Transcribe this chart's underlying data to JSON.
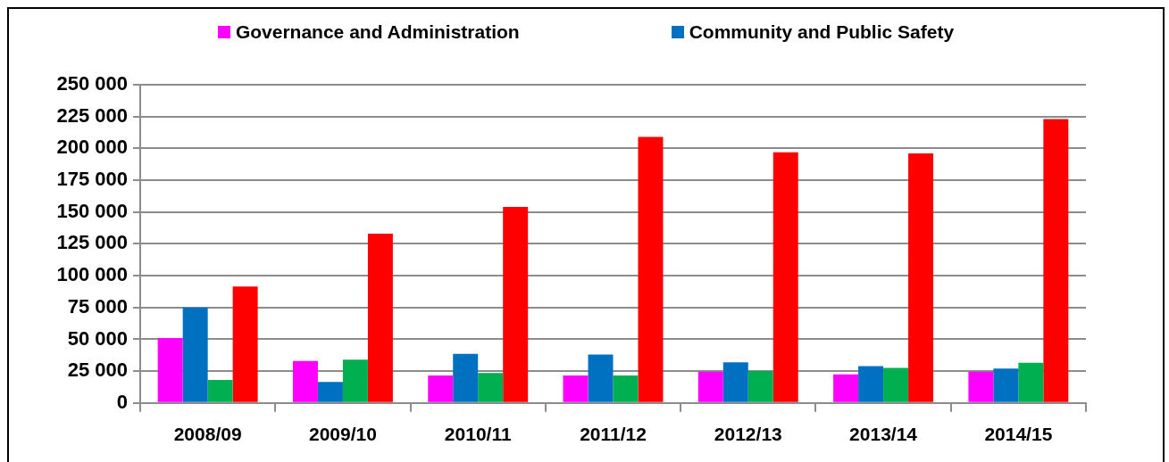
{
  "chart_data": {
    "type": "bar",
    "categories": [
      "2008/09",
      "2009/10",
      "2010/11",
      "2011/12",
      "2012/13",
      "2013/14",
      "2014/15"
    ],
    "series": [
      {
        "name": "Governance and Administration",
        "color": "#ff00ff",
        "values": [
          51000,
          33000,
          21500,
          21500,
          24500,
          22500,
          24500
        ]
      },
      {
        "name": "Community and Public Safety",
        "color": "#0070c0",
        "values": [
          75000,
          16500,
          38500,
          38000,
          32000,
          29000,
          27000
        ]
      },
      {
        "color": "#00b050",
        "values": [
          18000,
          34000,
          23500,
          21500,
          25000,
          27500,
          31500
        ]
      },
      {
        "color": "#ff0000",
        "values": [
          91500,
          133000,
          154000,
          209000,
          197000,
          196000,
          223000
        ]
      }
    ],
    "ylim": [
      0,
      250000
    ],
    "yticks": [
      0,
      {
        "value": 25000,
        "label": "25 000"
      },
      {
        "value": 50000,
        "label": "50 000"
      },
      {
        "value": 75000,
        "label": "75 000"
      },
      {
        "value": 100000,
        "label": "100 000"
      },
      {
        "value": 125000,
        "label": "125 000"
      },
      {
        "value": 150000,
        "label": "150 000"
      },
      {
        "value": 175000,
        "label": "175 000"
      },
      {
        "value": 200000,
        "label": "200 000"
      },
      {
        "value": 225000,
        "label": "225 000"
      },
      {
        "value": 250000,
        "label": "250 000"
      }
    ],
    "grid": "y",
    "legend": "top"
  }
}
